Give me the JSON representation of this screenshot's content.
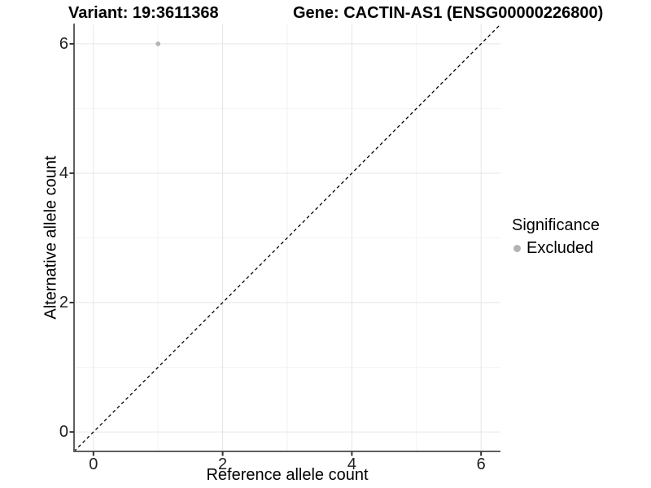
{
  "chart_data": {
    "type": "scatter",
    "title_left": "Variant: 19:3611368",
    "title_right": "Gene: CACTIN-AS1 (ENSG00000226800)",
    "xlabel": "Reference allele count",
    "ylabel": "Alternative allele count",
    "xlim": [
      -0.3,
      6.3
    ],
    "ylim": [
      -0.3,
      6.3
    ],
    "x_ticks": [
      0,
      2,
      4,
      6
    ],
    "y_ticks": [
      0,
      2,
      4,
      6
    ],
    "x_minor_ticks": [
      1,
      3,
      5
    ],
    "y_minor_ticks": [
      1,
      3,
      5
    ],
    "grid": true,
    "identity_line": {
      "style": "dashed",
      "color": "#000000"
    },
    "points": [
      {
        "x": 1,
        "y": 6,
        "significance": "Excluded",
        "color": "#b3b3b3"
      }
    ],
    "legend": {
      "title": "Significance",
      "position": "right",
      "items": [
        {
          "label": "Excluded",
          "color": "#b3b3b3"
        }
      ]
    },
    "colors": {
      "background": "#ffffff",
      "grid_major": "#e6e6e6",
      "grid_minor": "#f2f2f2",
      "axis_line": "#5f5f5f",
      "tick_mark": "#333333",
      "point": "#b3b3b3"
    }
  }
}
